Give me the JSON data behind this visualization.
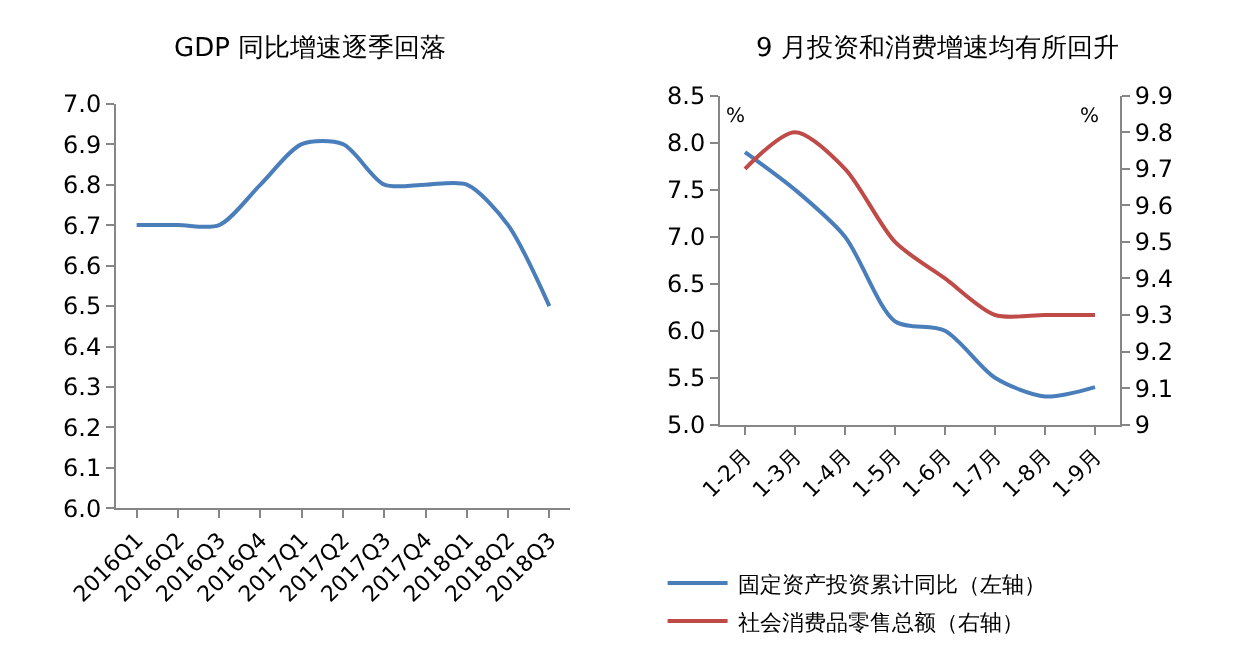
{
  "chart_data": [
    {
      "type": "line",
      "title": "GDP 同比增速逐季回落",
      "categories": [
        "2016Q1",
        "2016Q2",
        "2016Q3",
        "2016Q4",
        "2017Q1",
        "2017Q2",
        "2017Q3",
        "2017Q4",
        "2018Q1",
        "2018Q2",
        "2018Q3"
      ],
      "series": [
        {
          "color": "#4a7ebb",
          "values": [
            6.7,
            6.7,
            6.7,
            6.8,
            6.9,
            6.9,
            6.8,
            6.8,
            6.8,
            6.7,
            6.5
          ]
        }
      ],
      "ylim": [
        6.0,
        7.0
      ],
      "yticks": [
        {
          "value": 6.0,
          "label": "6.0"
        },
        6.1,
        6.2,
        6.3,
        6.4,
        6.5,
        6.6,
        6.7,
        6.8,
        6.9,
        {
          "value": 7.0,
          "label": "7.0"
        }
      ]
    },
    {
      "type": "line",
      "title": "9 月投资和消费增速均有所回升",
      "categories": [
        "1-2月",
        "1-3月",
        "1-4月",
        "1-5月",
        "1-6月",
        "1-7月",
        "1-8月",
        "1-9月"
      ],
      "series": [
        {
          "name": "固定资产投资累计同比（左轴）",
          "color": "#4a7ebb",
          "values": [
            7.9,
            7.5,
            7.0,
            6.1,
            6.0,
            5.5,
            5.3,
            5.4
          ]
        },
        {
          "name": "社会消费品零售总额（右轴）",
          "color": "#be4b48",
          "axis": "y2",
          "values": [
            9.7,
            9.8,
            9.7,
            9.5,
            9.4,
            9.3,
            9.3,
            9.3
          ]
        }
      ],
      "ylabel": "%",
      "y2label": "%",
      "ylim": [
        5.0,
        8.5
      ],
      "yticks": [
        {
          "value": 5.0,
          "label": "5.0"
        },
        5.5,
        {
          "value": 6.0,
          "label": "6.0"
        },
        6.5,
        {
          "value": 7.0,
          "label": "7.0"
        },
        7.5,
        {
          "value": 8.0,
          "label": "8.0"
        },
        8.5
      ],
      "y2lim": [
        9,
        9.9
      ],
      "y2ticks": [
        9,
        9.1,
        9.2,
        9.3,
        9.4,
        9.5,
        9.6,
        9.7,
        9.8,
        9.9
      ],
      "legend": "bottom"
    }
  ]
}
